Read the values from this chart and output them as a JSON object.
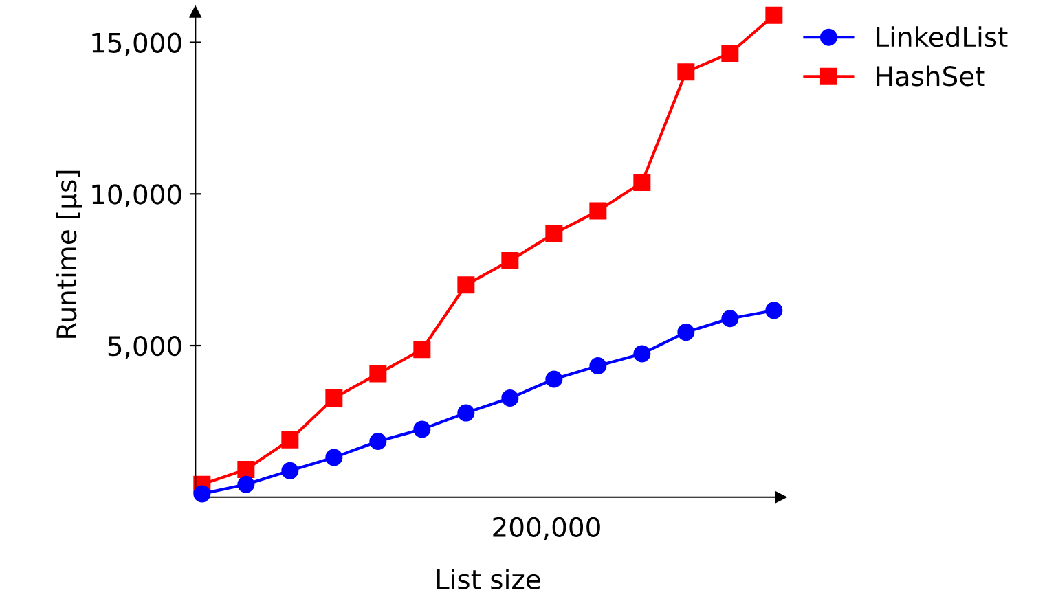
{
  "chart_data": {
    "type": "line",
    "xlabel": "List size",
    "ylabel": "Runtime [μs]",
    "categories": [
      null,
      null,
      null,
      null,
      null,
      null,
      null,
      null,
      null,
      null,
      null,
      null,
      null,
      null
    ],
    "annotations": [
      "200,000"
    ],
    "series": [
      {
        "name": "LinkedList",
        "color": "#0000ff",
        "marker": "circle",
        "values": [
          110,
          420,
          870,
          1310,
          1840,
          2240,
          2780,
          3270,
          3890,
          4330,
          4730,
          5440,
          5890,
          6160
        ]
      },
      {
        "name": "HashSet",
        "color": "#ff0000",
        "marker": "square",
        "values": [
          420,
          910,
          1890,
          3270,
          4070,
          4870,
          7000,
          7800,
          8690,
          9440,
          10380,
          14020,
          14640,
          15890
        ]
      }
    ],
    "ylim": [
      0,
      16000
    ],
    "yticks": [
      {
        "value": 5000,
        "label": "5,000"
      },
      {
        "value": 10000,
        "label": "10,000"
      },
      {
        "value": 15000,
        "label": "15,000"
      }
    ],
    "grid": false,
    "legend": "top right",
    "line_style": "solid"
  }
}
